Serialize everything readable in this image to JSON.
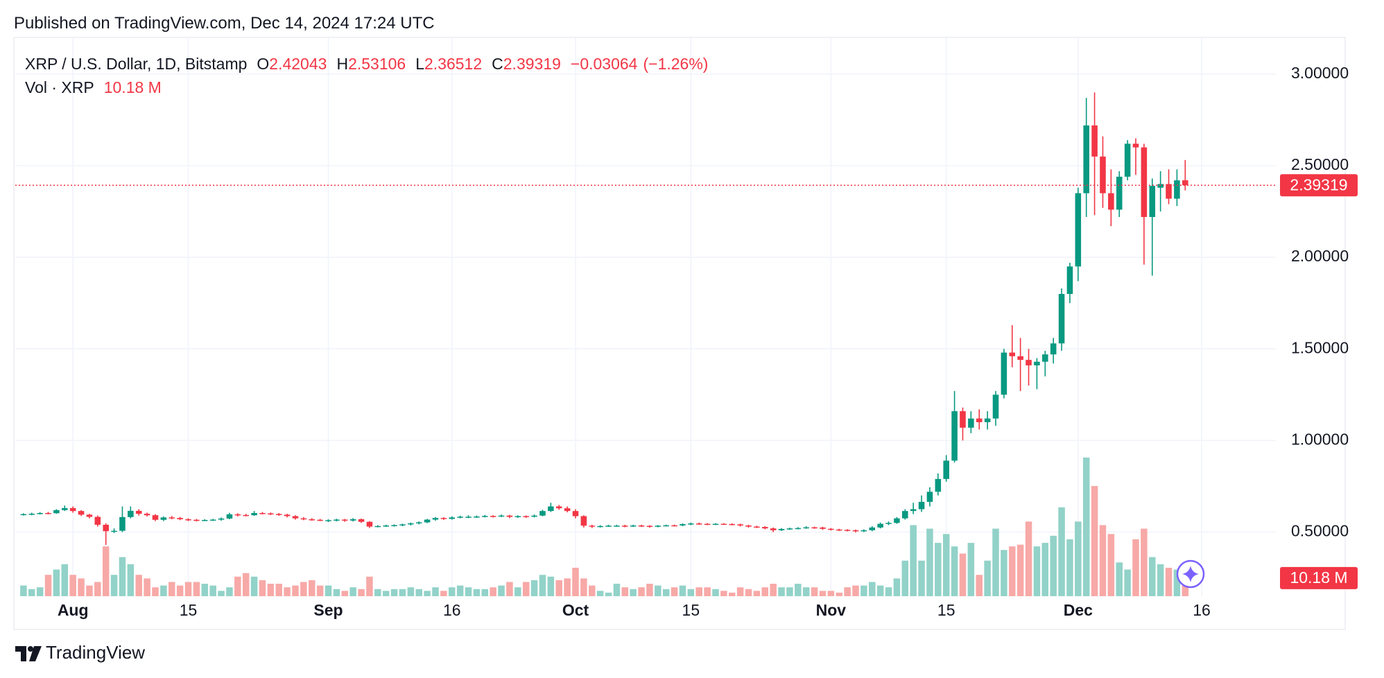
{
  "published": "Published on TradingView.com, Dec 14, 2024 17:24 UTC",
  "brand": "TradingView",
  "chart_data": {
    "type": "candlestick",
    "title": "XRP / U.S. Dollar, 1D, Bitstamp",
    "ohlc_labels": [
      "O",
      "H",
      "L",
      "C"
    ],
    "change": "−0.03064",
    "change_pct": "(−1.26%)",
    "up_color": "#089981",
    "down_color": "#f23645",
    "volume_up_color": "#92d2c8",
    "volume_down_color": "#f7a9a7",
    "grid": true,
    "xlim": [
      "2024-07-25",
      "2024-12-25"
    ],
    "xticks": [
      {
        "value": "2024-08-01",
        "label": "Aug"
      },
      {
        "value": "2024-08-15",
        "label": "15"
      },
      {
        "value": "2024-09-01",
        "label": "Sep"
      },
      {
        "value": "2024-09-16",
        "label": "16"
      },
      {
        "value": "2024-10-01",
        "label": "Oct"
      },
      {
        "value": "2024-10-15",
        "label": "15"
      },
      {
        "value": "2024-11-01",
        "label": "Nov"
      },
      {
        "value": "2024-11-15",
        "label": "15"
      },
      {
        "value": "2024-12-01",
        "label": "Dec"
      },
      {
        "value": "2024-12-16",
        "label": "16"
      }
    ],
    "ylim": [
      0.15,
      3.17
    ],
    "yticks": [
      {
        "value": 0.5,
        "label": "0.50000"
      },
      {
        "value": 1,
        "label": "1.00000"
      },
      {
        "value": 1.5,
        "label": "1.50000"
      },
      {
        "value": 2,
        "label": "2.00000"
      },
      {
        "value": 2.5,
        "label": "2.50000"
      },
      {
        "value": 3,
        "label": "3.00000"
      }
    ],
    "x": [
      "2024-07-26",
      "2024-07-27",
      "2024-07-28",
      "2024-07-29",
      "2024-07-30",
      "2024-07-31",
      "2024-08-01",
      "2024-08-02",
      "2024-08-03",
      "2024-08-04",
      "2024-08-05",
      "2024-08-06",
      "2024-08-07",
      "2024-08-08",
      "2024-08-09",
      "2024-08-10",
      "2024-08-11",
      "2024-08-12",
      "2024-08-13",
      "2024-08-14",
      "2024-08-15",
      "2024-08-16",
      "2024-08-17",
      "2024-08-18",
      "2024-08-19",
      "2024-08-20",
      "2024-08-21",
      "2024-08-22",
      "2024-08-23",
      "2024-08-24",
      "2024-08-25",
      "2024-08-26",
      "2024-08-27",
      "2024-08-28",
      "2024-08-29",
      "2024-08-30",
      "2024-08-31",
      "2024-09-01",
      "2024-09-02",
      "2024-09-03",
      "2024-09-04",
      "2024-09-05",
      "2024-09-06",
      "2024-09-07",
      "2024-09-08",
      "2024-09-09",
      "2024-09-10",
      "2024-09-11",
      "2024-09-12",
      "2024-09-13",
      "2024-09-14",
      "2024-09-15",
      "2024-09-16",
      "2024-09-17",
      "2024-09-18",
      "2024-09-19",
      "2024-09-20",
      "2024-09-21",
      "2024-09-22",
      "2024-09-23",
      "2024-09-24",
      "2024-09-25",
      "2024-09-26",
      "2024-09-27",
      "2024-09-28",
      "2024-09-29",
      "2024-09-30",
      "2024-10-01",
      "2024-10-02",
      "2024-10-03",
      "2024-10-04",
      "2024-10-05",
      "2024-10-06",
      "2024-10-07",
      "2024-10-08",
      "2024-10-09",
      "2024-10-10",
      "2024-10-11",
      "2024-10-12",
      "2024-10-13",
      "2024-10-14",
      "2024-10-15",
      "2024-10-16",
      "2024-10-17",
      "2024-10-18",
      "2024-10-19",
      "2024-10-20",
      "2024-10-21",
      "2024-10-22",
      "2024-10-23",
      "2024-10-24",
      "2024-10-25",
      "2024-10-26",
      "2024-10-27",
      "2024-10-28",
      "2024-10-29",
      "2024-10-30",
      "2024-10-31",
      "2024-11-01",
      "2024-11-02",
      "2024-11-03",
      "2024-11-04",
      "2024-11-05",
      "2024-11-06",
      "2024-11-07",
      "2024-11-08",
      "2024-11-09",
      "2024-11-10",
      "2024-11-11",
      "2024-11-12",
      "2024-11-13",
      "2024-11-14",
      "2024-11-15",
      "2024-11-16",
      "2024-11-17",
      "2024-11-18",
      "2024-11-19",
      "2024-11-20",
      "2024-11-21",
      "2024-11-22",
      "2024-11-23",
      "2024-11-24",
      "2024-11-25",
      "2024-11-26",
      "2024-11-27",
      "2024-11-28",
      "2024-11-29",
      "2024-11-30",
      "2024-12-01",
      "2024-12-02",
      "2024-12-03",
      "2024-12-04",
      "2024-12-05",
      "2024-12-06",
      "2024-12-07",
      "2024-12-08",
      "2024-12-09",
      "2024-12-10",
      "2024-12-11",
      "2024-12-12",
      "2024-12-13",
      "2024-12-14"
    ],
    "ohlc": [
      [
        0.595,
        0.603,
        0.59,
        0.598
      ],
      [
        0.598,
        0.606,
        0.592,
        0.6
      ],
      [
        0.6,
        0.609,
        0.596,
        0.604
      ],
      [
        0.604,
        0.61,
        0.597,
        0.603
      ],
      [
        0.603,
        0.625,
        0.6,
        0.62
      ],
      [
        0.62,
        0.645,
        0.615,
        0.631
      ],
      [
        0.631,
        0.64,
        0.606,
        0.615
      ],
      [
        0.615,
        0.62,
        0.588,
        0.595
      ],
      [
        0.595,
        0.6,
        0.575,
        0.583
      ],
      [
        0.583,
        0.59,
        0.53,
        0.54
      ],
      [
        0.54,
        0.548,
        0.43,
        0.505
      ],
      [
        0.505,
        0.52,
        0.495,
        0.507
      ],
      [
        0.507,
        0.64,
        0.5,
        0.582
      ],
      [
        0.582,
        0.64,
        0.575,
        0.616
      ],
      [
        0.616,
        0.625,
        0.59,
        0.6
      ],
      [
        0.6,
        0.606,
        0.585,
        0.592
      ],
      [
        0.592,
        0.598,
        0.56,
        0.567
      ],
      [
        0.567,
        0.585,
        0.56,
        0.58
      ],
      [
        0.58,
        0.588,
        0.57,
        0.577
      ],
      [
        0.577,
        0.583,
        0.565,
        0.57
      ],
      [
        0.57,
        0.576,
        0.56,
        0.567
      ],
      [
        0.567,
        0.572,
        0.558,
        0.564
      ],
      [
        0.564,
        0.57,
        0.56,
        0.566
      ],
      [
        0.566,
        0.572,
        0.561,
        0.568
      ],
      [
        0.568,
        0.58,
        0.562,
        0.574
      ],
      [
        0.574,
        0.605,
        0.57,
        0.597
      ],
      [
        0.597,
        0.603,
        0.585,
        0.593
      ],
      [
        0.593,
        0.6,
        0.586,
        0.592
      ],
      [
        0.592,
        0.615,
        0.588,
        0.604
      ],
      [
        0.604,
        0.61,
        0.596,
        0.602
      ],
      [
        0.602,
        0.607,
        0.593,
        0.599
      ],
      [
        0.599,
        0.604,
        0.588,
        0.595
      ],
      [
        0.595,
        0.6,
        0.58,
        0.587
      ],
      [
        0.587,
        0.592,
        0.568,
        0.575
      ],
      [
        0.575,
        0.582,
        0.565,
        0.57
      ],
      [
        0.57,
        0.576,
        0.562,
        0.567
      ],
      [
        0.567,
        0.572,
        0.56,
        0.564
      ],
      [
        0.564,
        0.57,
        0.555,
        0.565
      ],
      [
        0.565,
        0.573,
        0.558,
        0.568
      ],
      [
        0.568,
        0.572,
        0.556,
        0.563
      ],
      [
        0.563,
        0.576,
        0.558,
        0.57
      ],
      [
        0.57,
        0.574,
        0.55,
        0.556
      ],
      [
        0.556,
        0.56,
        0.522,
        0.53
      ],
      [
        0.53,
        0.538,
        0.526,
        0.533
      ],
      [
        0.533,
        0.54,
        0.528,
        0.536
      ],
      [
        0.536,
        0.542,
        0.53,
        0.538
      ],
      [
        0.538,
        0.546,
        0.532,
        0.542
      ],
      [
        0.542,
        0.552,
        0.536,
        0.548
      ],
      [
        0.548,
        0.558,
        0.542,
        0.553
      ],
      [
        0.553,
        0.572,
        0.549,
        0.568
      ],
      [
        0.568,
        0.582,
        0.562,
        0.577
      ],
      [
        0.577,
        0.581,
        0.566,
        0.572
      ],
      [
        0.572,
        0.586,
        0.568,
        0.58
      ],
      [
        0.58,
        0.59,
        0.575,
        0.584
      ],
      [
        0.584,
        0.592,
        0.576,
        0.584
      ],
      [
        0.584,
        0.591,
        0.578,
        0.585
      ],
      [
        0.585,
        0.594,
        0.58,
        0.588
      ],
      [
        0.588,
        0.592,
        0.58,
        0.586
      ],
      [
        0.586,
        0.596,
        0.582,
        0.59
      ],
      [
        0.59,
        0.594,
        0.576,
        0.583
      ],
      [
        0.583,
        0.592,
        0.578,
        0.587
      ],
      [
        0.587,
        0.591,
        0.578,
        0.584
      ],
      [
        0.584,
        0.596,
        0.58,
        0.59
      ],
      [
        0.59,
        0.622,
        0.586,
        0.615
      ],
      [
        0.615,
        0.66,
        0.61,
        0.64
      ],
      [
        0.64,
        0.648,
        0.622,
        0.63
      ],
      [
        0.63,
        0.64,
        0.608,
        0.615
      ],
      [
        0.615,
        0.625,
        0.575,
        0.587
      ],
      [
        0.587,
        0.592,
        0.525,
        0.535
      ],
      [
        0.535,
        0.54,
        0.522,
        0.53
      ],
      [
        0.53,
        0.538,
        0.525,
        0.533
      ],
      [
        0.533,
        0.54,
        0.528,
        0.535
      ],
      [
        0.535,
        0.54,
        0.53,
        0.535
      ],
      [
        0.535,
        0.54,
        0.526,
        0.532
      ],
      [
        0.532,
        0.54,
        0.528,
        0.536
      ],
      [
        0.536,
        0.54,
        0.528,
        0.534
      ],
      [
        0.534,
        0.538,
        0.524,
        0.53
      ],
      [
        0.53,
        0.538,
        0.526,
        0.535
      ],
      [
        0.535,
        0.541,
        0.531,
        0.537
      ],
      [
        0.537,
        0.541,
        0.531,
        0.536
      ],
      [
        0.536,
        0.548,
        0.532,
        0.543
      ],
      [
        0.543,
        0.552,
        0.538,
        0.547
      ],
      [
        0.547,
        0.552,
        0.54,
        0.545
      ],
      [
        0.545,
        0.549,
        0.538,
        0.543
      ],
      [
        0.543,
        0.549,
        0.539,
        0.545
      ],
      [
        0.545,
        0.549,
        0.54,
        0.544
      ],
      [
        0.544,
        0.548,
        0.537,
        0.542
      ],
      [
        0.542,
        0.546,
        0.53,
        0.536
      ],
      [
        0.536,
        0.54,
        0.524,
        0.53
      ],
      [
        0.53,
        0.535,
        0.522,
        0.528
      ],
      [
        0.528,
        0.532,
        0.515,
        0.52
      ],
      [
        0.52,
        0.525,
        0.5,
        0.51
      ],
      [
        0.51,
        0.522,
        0.506,
        0.517
      ],
      [
        0.517,
        0.524,
        0.512,
        0.52
      ],
      [
        0.52,
        0.527,
        0.515,
        0.522
      ],
      [
        0.522,
        0.532,
        0.518,
        0.526
      ],
      [
        0.526,
        0.53,
        0.518,
        0.525
      ],
      [
        0.525,
        0.529,
        0.512,
        0.518
      ],
      [
        0.518,
        0.522,
        0.508,
        0.514
      ],
      [
        0.514,
        0.518,
        0.506,
        0.512
      ],
      [
        0.512,
        0.516,
        0.504,
        0.51
      ],
      [
        0.51,
        0.514,
        0.498,
        0.506
      ],
      [
        0.506,
        0.515,
        0.5,
        0.51
      ],
      [
        0.51,
        0.532,
        0.505,
        0.525
      ],
      [
        0.525,
        0.552,
        0.52,
        0.545
      ],
      [
        0.545,
        0.558,
        0.538,
        0.55
      ],
      [
        0.55,
        0.582,
        0.545,
        0.575
      ],
      [
        0.575,
        0.625,
        0.568,
        0.615
      ],
      [
        0.615,
        0.66,
        0.598,
        0.625
      ],
      [
        0.625,
        0.7,
        0.61,
        0.665
      ],
      [
        0.665,
        0.745,
        0.64,
        0.72
      ],
      [
        0.72,
        0.82,
        0.7,
        0.79
      ],
      [
        0.79,
        0.92,
        0.775,
        0.89
      ],
      [
        0.89,
        1.27,
        0.88,
        1.16
      ],
      [
        1.16,
        1.18,
        1.0,
        1.07
      ],
      [
        1.07,
        1.16,
        1.04,
        1.12
      ],
      [
        1.12,
        1.17,
        1.06,
        1.1
      ],
      [
        1.1,
        1.16,
        1.06,
        1.12
      ],
      [
        1.12,
        1.27,
        1.08,
        1.25
      ],
      [
        1.25,
        1.5,
        1.23,
        1.48
      ],
      [
        1.48,
        1.63,
        1.4,
        1.46
      ],
      [
        1.46,
        1.56,
        1.27,
        1.44
      ],
      [
        1.44,
        1.5,
        1.3,
        1.41
      ],
      [
        1.41,
        1.45,
        1.28,
        1.43
      ],
      [
        1.43,
        1.49,
        1.35,
        1.47
      ],
      [
        1.47,
        1.56,
        1.42,
        1.53
      ],
      [
        1.53,
        1.83,
        1.49,
        1.8
      ],
      [
        1.8,
        1.97,
        1.75,
        1.95
      ],
      [
        1.95,
        2.38,
        1.87,
        2.35
      ],
      [
        2.35,
        2.87,
        2.22,
        2.72
      ],
      [
        2.72,
        2.9,
        2.23,
        2.55
      ],
      [
        2.55,
        2.66,
        2.27,
        2.35
      ],
      [
        2.35,
        2.48,
        2.17,
        2.26
      ],
      [
        2.26,
        2.47,
        2.22,
        2.44
      ],
      [
        2.44,
        2.64,
        2.42,
        2.62
      ],
      [
        2.62,
        2.65,
        2.45,
        2.6
      ],
      [
        2.6,
        2.62,
        1.96,
        2.22
      ],
      [
        2.22,
        2.43,
        1.9,
        2.39
      ],
      [
        2.38,
        2.47,
        2.25,
        2.4
      ],
      [
        2.4,
        2.48,
        2.29,
        2.32
      ],
      [
        2.32,
        2.48,
        2.28,
        2.42
      ],
      [
        2.42043,
        2.53106,
        2.36512,
        2.39319
      ]
    ],
    "volume": {
      "name": "Vol · XRP",
      "last_value_label": "10.18 M",
      "values": [
        6,
        4,
        5,
        12,
        15,
        18,
        12,
        10,
        6,
        8,
        28,
        12,
        22,
        18,
        12,
        10,
        5,
        6,
        8,
        6,
        8,
        8,
        7,
        6,
        3,
        5,
        11,
        13,
        11,
        9,
        7,
        7,
        5,
        6,
        8,
        9,
        6,
        6,
        4,
        3,
        5,
        4,
        11,
        4,
        3,
        4,
        4,
        5,
        4,
        3,
        5,
        3,
        5,
        6,
        5,
        4,
        4,
        5,
        6,
        8,
        5,
        8,
        9,
        12,
        11,
        9,
        10,
        16,
        10,
        6,
        3,
        2,
        7,
        5,
        4,
        5,
        7,
        6,
        4,
        5,
        6,
        4,
        5,
        5,
        4,
        3,
        2,
        5,
        4,
        3,
        5,
        7,
        5,
        5,
        7,
        5,
        5,
        3,
        3,
        2,
        5,
        6,
        6,
        8,
        6,
        5,
        10,
        20,
        40,
        20,
        38,
        30,
        35,
        28,
        24,
        30,
        12,
        20,
        38,
        26,
        28,
        29,
        42,
        28,
        30,
        34,
        50,
        32,
        42,
        78,
        62,
        40,
        35,
        19,
        15,
        32,
        38,
        22,
        18,
        16,
        15,
        10.18
      ]
    }
  }
}
